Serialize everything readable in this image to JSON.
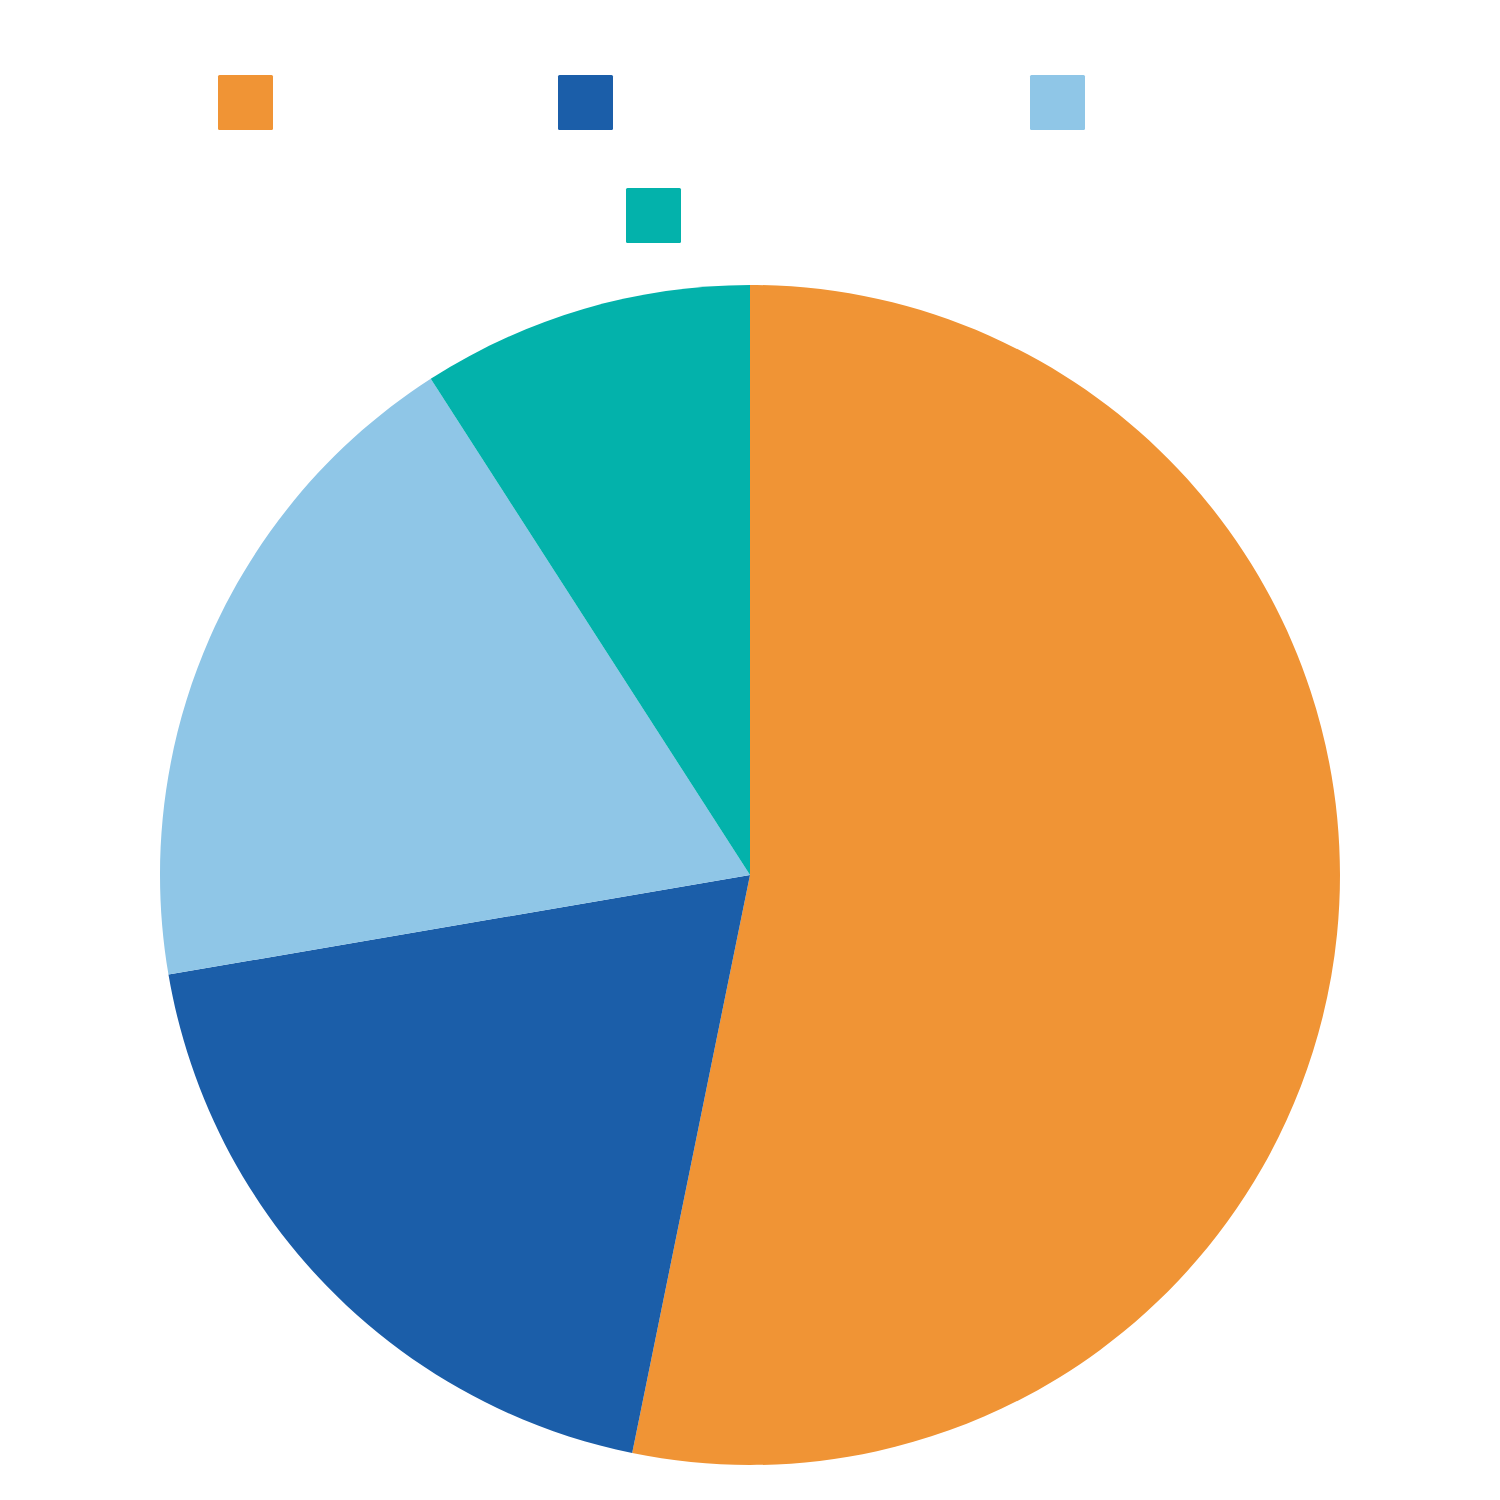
{
  "chart_data": {
    "type": "pie",
    "categories": [
      null,
      null,
      null,
      null
    ],
    "values": [
      53.2,
      19.1,
      18.6,
      9.1
    ],
    "colors": [
      "#f09435",
      "#1b5ea9",
      "#8fc6e7",
      "#03b2ab"
    ]
  }
}
